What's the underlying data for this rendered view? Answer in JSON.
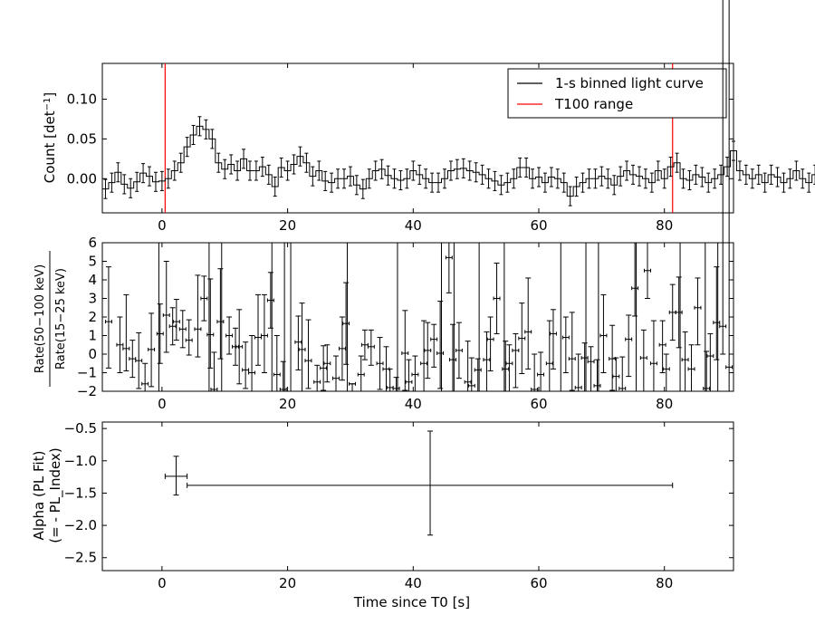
{
  "chart_data": [
    {
      "type": "line",
      "ylabel": "Count [det$^{-1}$]",
      "xlim": [
        -9.5,
        91
      ],
      "ylim": [
        -0.043,
        0.145
      ],
      "xticks": [
        0,
        20,
        40,
        60,
        80
      ],
      "xtick_labels": [
        "0",
        "20",
        "40",
        "60",
        "80"
      ],
      "yticks": [
        0.0,
        0.05,
        0.1
      ],
      "ytick_labels": [
        "0.00",
        "0.05",
        "0.10"
      ],
      "legend": {
        "placement": "top-right",
        "entries": [
          {
            "label": "1-s binned light curve",
            "color": "#000000"
          },
          {
            "label": "T100 range",
            "color": "#ff0000"
          }
        ]
      },
      "series": [
        {
          "name": "1-s binned light curve",
          "x_start": -9.5,
          "bin_width": 1,
          "values": [
            -0.013,
            -0.005,
            0.008,
            -0.007,
            -0.012,
            -0.004,
            0.007,
            0.003,
            -0.004,
            -0.003,
            0.0,
            0.01,
            0.02,
            0.04,
            0.055,
            0.066,
            0.062,
            0.05,
            0.02,
            0.012,
            0.018,
            0.01,
            0.025,
            0.01,
            0.01,
            0.015,
            0.005,
            -0.01,
            0.014,
            0.01,
            0.018,
            0.028,
            0.02,
            0.003,
            0.01,
            -0.003,
            -0.005,
            0.0,
            0.0,
            0.003,
            -0.008,
            -0.013,
            0.0,
            0.01,
            0.012,
            0.004,
            0.0,
            -0.002,
            0.0,
            0.01,
            0.005,
            0.0,
            -0.005,
            -0.005,
            0.0,
            0.01,
            0.012,
            0.013,
            0.01,
            0.008,
            0.005,
            0.0,
            -0.003,
            -0.008,
            -0.005,
            0.0,
            0.014,
            0.014,
            0.0,
            0.002,
            -0.005,
            0.002,
            0.0,
            -0.005,
            -0.022,
            -0.01,
            -0.005,
            0.0,
            0.0,
            0.003,
            0.0,
            -0.008,
            0.003,
            0.01,
            0.005,
            0.003,
            0.0,
            -0.005,
            0.01,
            0.0,
            0.015,
            0.02,
            0.0,
            -0.002,
            0.005,
            0.002,
            -0.005,
            0.0,
            0.005,
            0.015,
            0.035,
            0.01,
            0.005,
            0.0,
            0.005,
            -0.005,
            0.005,
            0.002,
            -0.005,
            0.0,
            0.01,
            0.0,
            -0.005,
            0.005,
            0.01,
            0.013,
            0.008,
            0.015,
            0.01,
            0.018,
            -0.015,
            -0.01,
            -0.015,
            -0.015,
            -0.01,
            0.0,
            0.005,
            0.015,
            0.02,
            0.015,
            -0.005
          ],
          "errors": 0.012
        }
      ],
      "t100_lines": [
        0.5,
        81.3
      ]
    },
    {
      "type": "scatter",
      "ylabel": "$\\frac{\\rm Rate(50-100\\ keV)}{\\rm Rate(15-25\\ keV)}$",
      "xlim": [
        -9.5,
        91
      ],
      "ylim": [
        -2,
        6
      ],
      "xticks": [
        0,
        20,
        40,
        60,
        80
      ],
      "xtick_labels": [
        "0",
        "20",
        "40",
        "60",
        "80"
      ],
      "yticks": [
        -2,
        -1,
        0,
        1,
        2,
        3,
        4,
        5,
        6
      ],
      "ytick_labels": [
        "−2",
        "−1",
        "0",
        "1",
        "2",
        "3",
        "4",
        "5",
        "6"
      ],
      "series": [
        {
          "name": "",
          "x": [
            -8.5,
            -6.7,
            -5.7,
            -4.7,
            -3.7,
            -2.7,
            -1.7,
            -0.3,
            0.7,
            1.7,
            2.3,
            3.3,
            4.3,
            5.7,
            6.7,
            7.7,
            8.3,
            9.3,
            10.7,
            11.7,
            12.3,
            13.3,
            14.3,
            15.3,
            16.3,
            17.3,
            18.3,
            19.3,
            21.7,
            22.3,
            23.3,
            24.7,
            25.7,
            26.3,
            27.7,
            28.7,
            29.3,
            30.3,
            31.7,
            32.3,
            33.3,
            34.7,
            35.7,
            36.3,
            37.3,
            38.7,
            39.3,
            40.3,
            41.7,
            42.3,
            43.3,
            44.3,
            45.7,
            46.3,
            47.3,
            48.7,
            49.3,
            50.3,
            51.7,
            52.3,
            53.3,
            54.7,
            55.3,
            56.3,
            57.3,
            58.3,
            59.3,
            60.3,
            61.7,
            62.3,
            64.3,
            65.3,
            66.3,
            67.3,
            68.3,
            69.3,
            70.3,
            71.7,
            72.3,
            73.3,
            74.3,
            75.3,
            76.7,
            77.3,
            78.3,
            79.7,
            80.3,
            81.3,
            82.3,
            83.3,
            84.3,
            85.3,
            86.7,
            87.3,
            88.3,
            89.3,
            90.3
          ],
          "y": [
            1.75,
            0.5,
            0.3,
            -0.25,
            -0.35,
            -1.6,
            0.25,
            1.1,
            2.1,
            1.5,
            1.75,
            1.35,
            0.75,
            1.35,
            3.0,
            1.05,
            -1.9,
            1.75,
            1.0,
            0.4,
            0.4,
            -0.85,
            -1.0,
            0.9,
            1.0,
            2.9,
            -1.1,
            -1.9,
            0.65,
            0.25,
            -0.35,
            -1.5,
            -0.75,
            -0.5,
            -1.3,
            0.3,
            1.65,
            -1.6,
            -1.1,
            0.5,
            0.4,
            -0.5,
            -0.8,
            -1.8,
            -1.85,
            0.05,
            -1.5,
            -1.1,
            -0.5,
            0.2,
            0.8,
            0.05,
            5.2,
            -0.3,
            0.2,
            -1.5,
            -1.7,
            -0.85,
            -0.3,
            0.8,
            3.0,
            -0.8,
            -0.5,
            0.2,
            0.85,
            1.2,
            -1.9,
            -1.1,
            -0.5,
            1.1,
            0.9,
            -0.25,
            -1.8,
            -0.2,
            -0.4,
            -1.7,
            1.0,
            -0.25,
            -1.2,
            -1.85,
            0.8,
            3.55,
            -0.2,
            4.5,
            -0.5,
            0.5,
            -0.8,
            2.25,
            2.25,
            -0.3,
            -0.8,
            2.5,
            -1.85,
            -0.1,
            1.7,
            1.5,
            -0.7
          ],
          "x_err": 0.5,
          "y_err_up": [
            2.95,
            1.5,
            2.9,
            1.0,
            1.5,
            1.1,
            1.95,
            1.6,
            2.9,
            1.0,
            1.2,
            1.0,
            1.1,
            2.9,
            1.2,
            3.0,
            2.0,
            2.85,
            1.0,
            1.0,
            2.0,
            1.5,
            2.0,
            2.3,
            2.2,
            1.5,
            2.1,
            1.5,
            1.4,
            2.5,
            2.2,
            0.9,
            1.2,
            1.0,
            1.2,
            1.7,
            2.2,
            0.0,
            1.0,
            0.8,
            0.9,
            1.4,
            1.2,
            1.0,
            0.6,
            2.3,
            1.2,
            1.0,
            2.3,
            1.5,
            0.8,
            2.8,
            1.9,
            1.9,
            1.5,
            2.2,
            1.5,
            0.6,
            1.5,
            1.2,
            1.9,
            1.5,
            1.0,
            0.9,
            1.9,
            2.9,
            1.9,
            1.2,
            2.3,
            1.3,
            1.1,
            2.5,
            1.8,
            0.8,
            0.8,
            1.4,
            2.2,
            1.8,
            1.0,
            1.7,
            1.3,
            3.2,
            1.5,
            1.9,
            2.3,
            1.3,
            0.8,
            1.5,
            1.9,
            1.5,
            1.3,
            1.6,
            2.0,
            1.2,
            3.0
          ],
          "y_err_down": [
            2.5,
            1.5,
            1.2,
            1.0,
            1.5,
            1.1,
            2.0,
            1.6,
            2.0,
            1.0,
            1.0,
            1.0,
            0.8,
            1.5,
            1.2,
            1.8,
            1.0,
            2.0,
            1.0,
            1.0,
            2.0,
            1.0,
            1.0,
            1.5,
            2.0,
            1.5,
            1.0,
            1.0,
            1.5,
            2.5,
            1.5,
            0.5,
            1.2,
            1.0,
            0.7,
            1.7,
            2.2,
            0.4,
            1.0,
            0.8,
            1.0,
            1.4,
            1.2,
            0.2,
            0.2,
            2.0,
            0.5,
            1.0,
            1.5,
            1.5,
            1.5,
            1.9,
            1.9,
            1.7,
            1.5,
            0.5,
            0.3,
            1.2,
            1.7,
            1.7,
            1.9,
            1.2,
            1.5,
            2.0,
            1.9,
            2.0,
            0.1,
            0.9,
            1.5,
            1.9,
            1.9,
            1.7,
            0.2,
            1.8,
            1.6,
            0.3,
            2.0,
            1.7,
            0.8,
            0.2,
            2.0,
            1.5,
            1.8,
            1.5,
            1.5,
            1.5,
            1.2,
            1.5,
            1.9,
            1.7,
            1.2,
            2.0,
            0.2,
            1.9,
            2.0,
            1.5,
            1.3
          ]
        }
      ],
      "unbounded_bin_edges": [
        -0.5,
        7.5,
        9.5,
        17.5,
        19.5,
        20.5,
        29.5,
        37.5,
        44.5,
        46.5,
        50.5,
        54.5,
        63.5,
        67.5,
        69.5,
        75.5,
        82.5,
        86.5,
        88.5
      ]
    },
    {
      "type": "scatter",
      "xlabel": "Time since T0 [s]",
      "ylabel": "Alpha (PL Fit)\n(= - PL_Index)",
      "xlim": [
        -9.5,
        91
      ],
      "ylim": [
        -2.7,
        -0.4
      ],
      "xticks": [
        0,
        20,
        40,
        60,
        80
      ],
      "xtick_labels": [
        "0",
        "20",
        "40",
        "60",
        "80"
      ],
      "yticks": [
        -2.5,
        -2.0,
        -1.5,
        -1.0,
        -0.5
      ],
      "ytick_labels": [
        "−2.5",
        "−2.0",
        "−1.5",
        "−1.0",
        "−0.5"
      ],
      "series": [
        {
          "name": "",
          "x": [
            2.25,
            42.7
          ],
          "y": [
            -1.24,
            -1.38
          ],
          "x_low": [
            0.5,
            4.0
          ],
          "x_high": [
            4.0,
            81.3
          ],
          "y_low": [
            -1.53,
            -2.15
          ],
          "y_high": [
            -0.93,
            -0.54
          ]
        }
      ]
    }
  ]
}
